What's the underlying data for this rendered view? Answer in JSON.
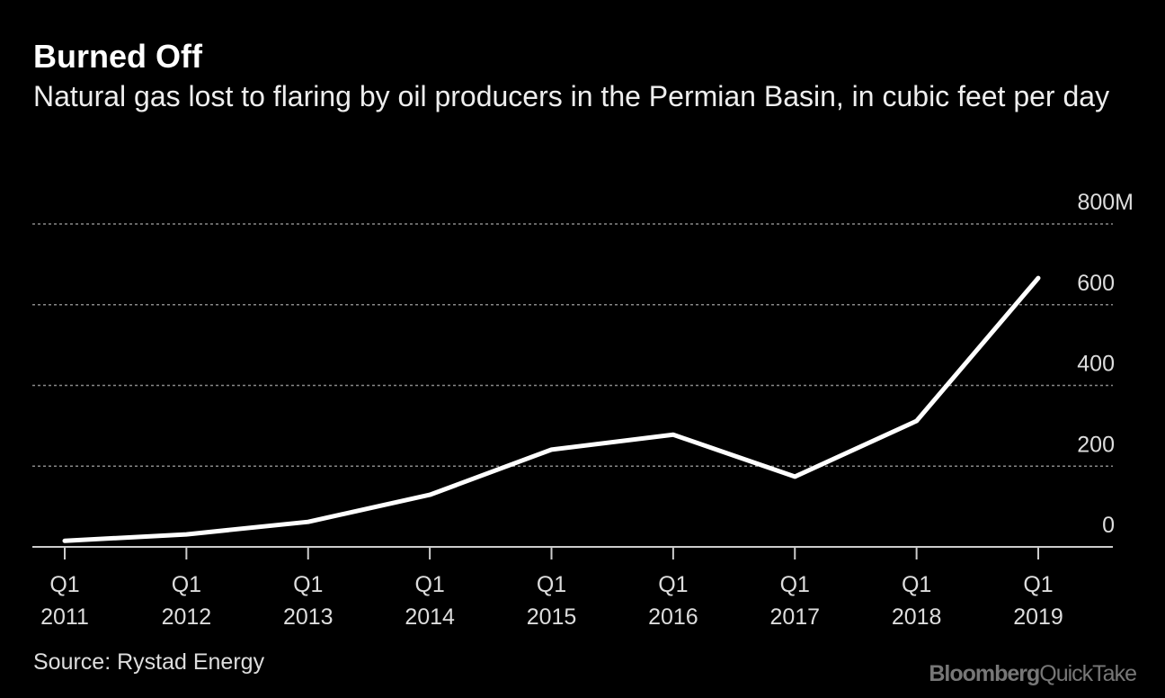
{
  "title": "Burned Off",
  "subtitle": "Natural gas lost to flaring by oil producers in the Permian Basin, in cubic feet per day",
  "source": "Source: Rystad Energy",
  "logo": {
    "brand": "Bloomberg",
    "product": "QuickTake"
  },
  "chart_data": {
    "type": "line",
    "title": "Burned Off",
    "subtitle": "Natural gas lost to flaring by oil producers in the Permian Basin, in cubic feet per day",
    "x": [
      "Q1 2011",
      "Q1 2012",
      "Q1 2013",
      "Q1 2014",
      "Q1 2015",
      "Q1 2016",
      "Q1 2017",
      "Q1 2018",
      "Q1 2019"
    ],
    "x_tick_labels": [
      [
        "Q1",
        "2011"
      ],
      [
        "Q1",
        "2012"
      ],
      [
        "Q1",
        "2013"
      ],
      [
        "Q1",
        "2014"
      ],
      [
        "Q1",
        "2015"
      ],
      [
        "Q1",
        "2016"
      ],
      [
        "Q1",
        "2017"
      ],
      [
        "Q1",
        "2018"
      ],
      [
        "Q1",
        "2019"
      ]
    ],
    "values": [
      15,
      31,
      62,
      129,
      241,
      278,
      174,
      312,
      666
    ],
    "ylim": [
      0,
      800
    ],
    "y_ticks": [
      0,
      200,
      400,
      600,
      800
    ],
    "y_tick_labels": [
      "0",
      "200",
      "400",
      "600",
      "800M"
    ],
    "grid": true,
    "y_axis_side": "right",
    "line_color": "#ffffff",
    "background": "#000000"
  }
}
